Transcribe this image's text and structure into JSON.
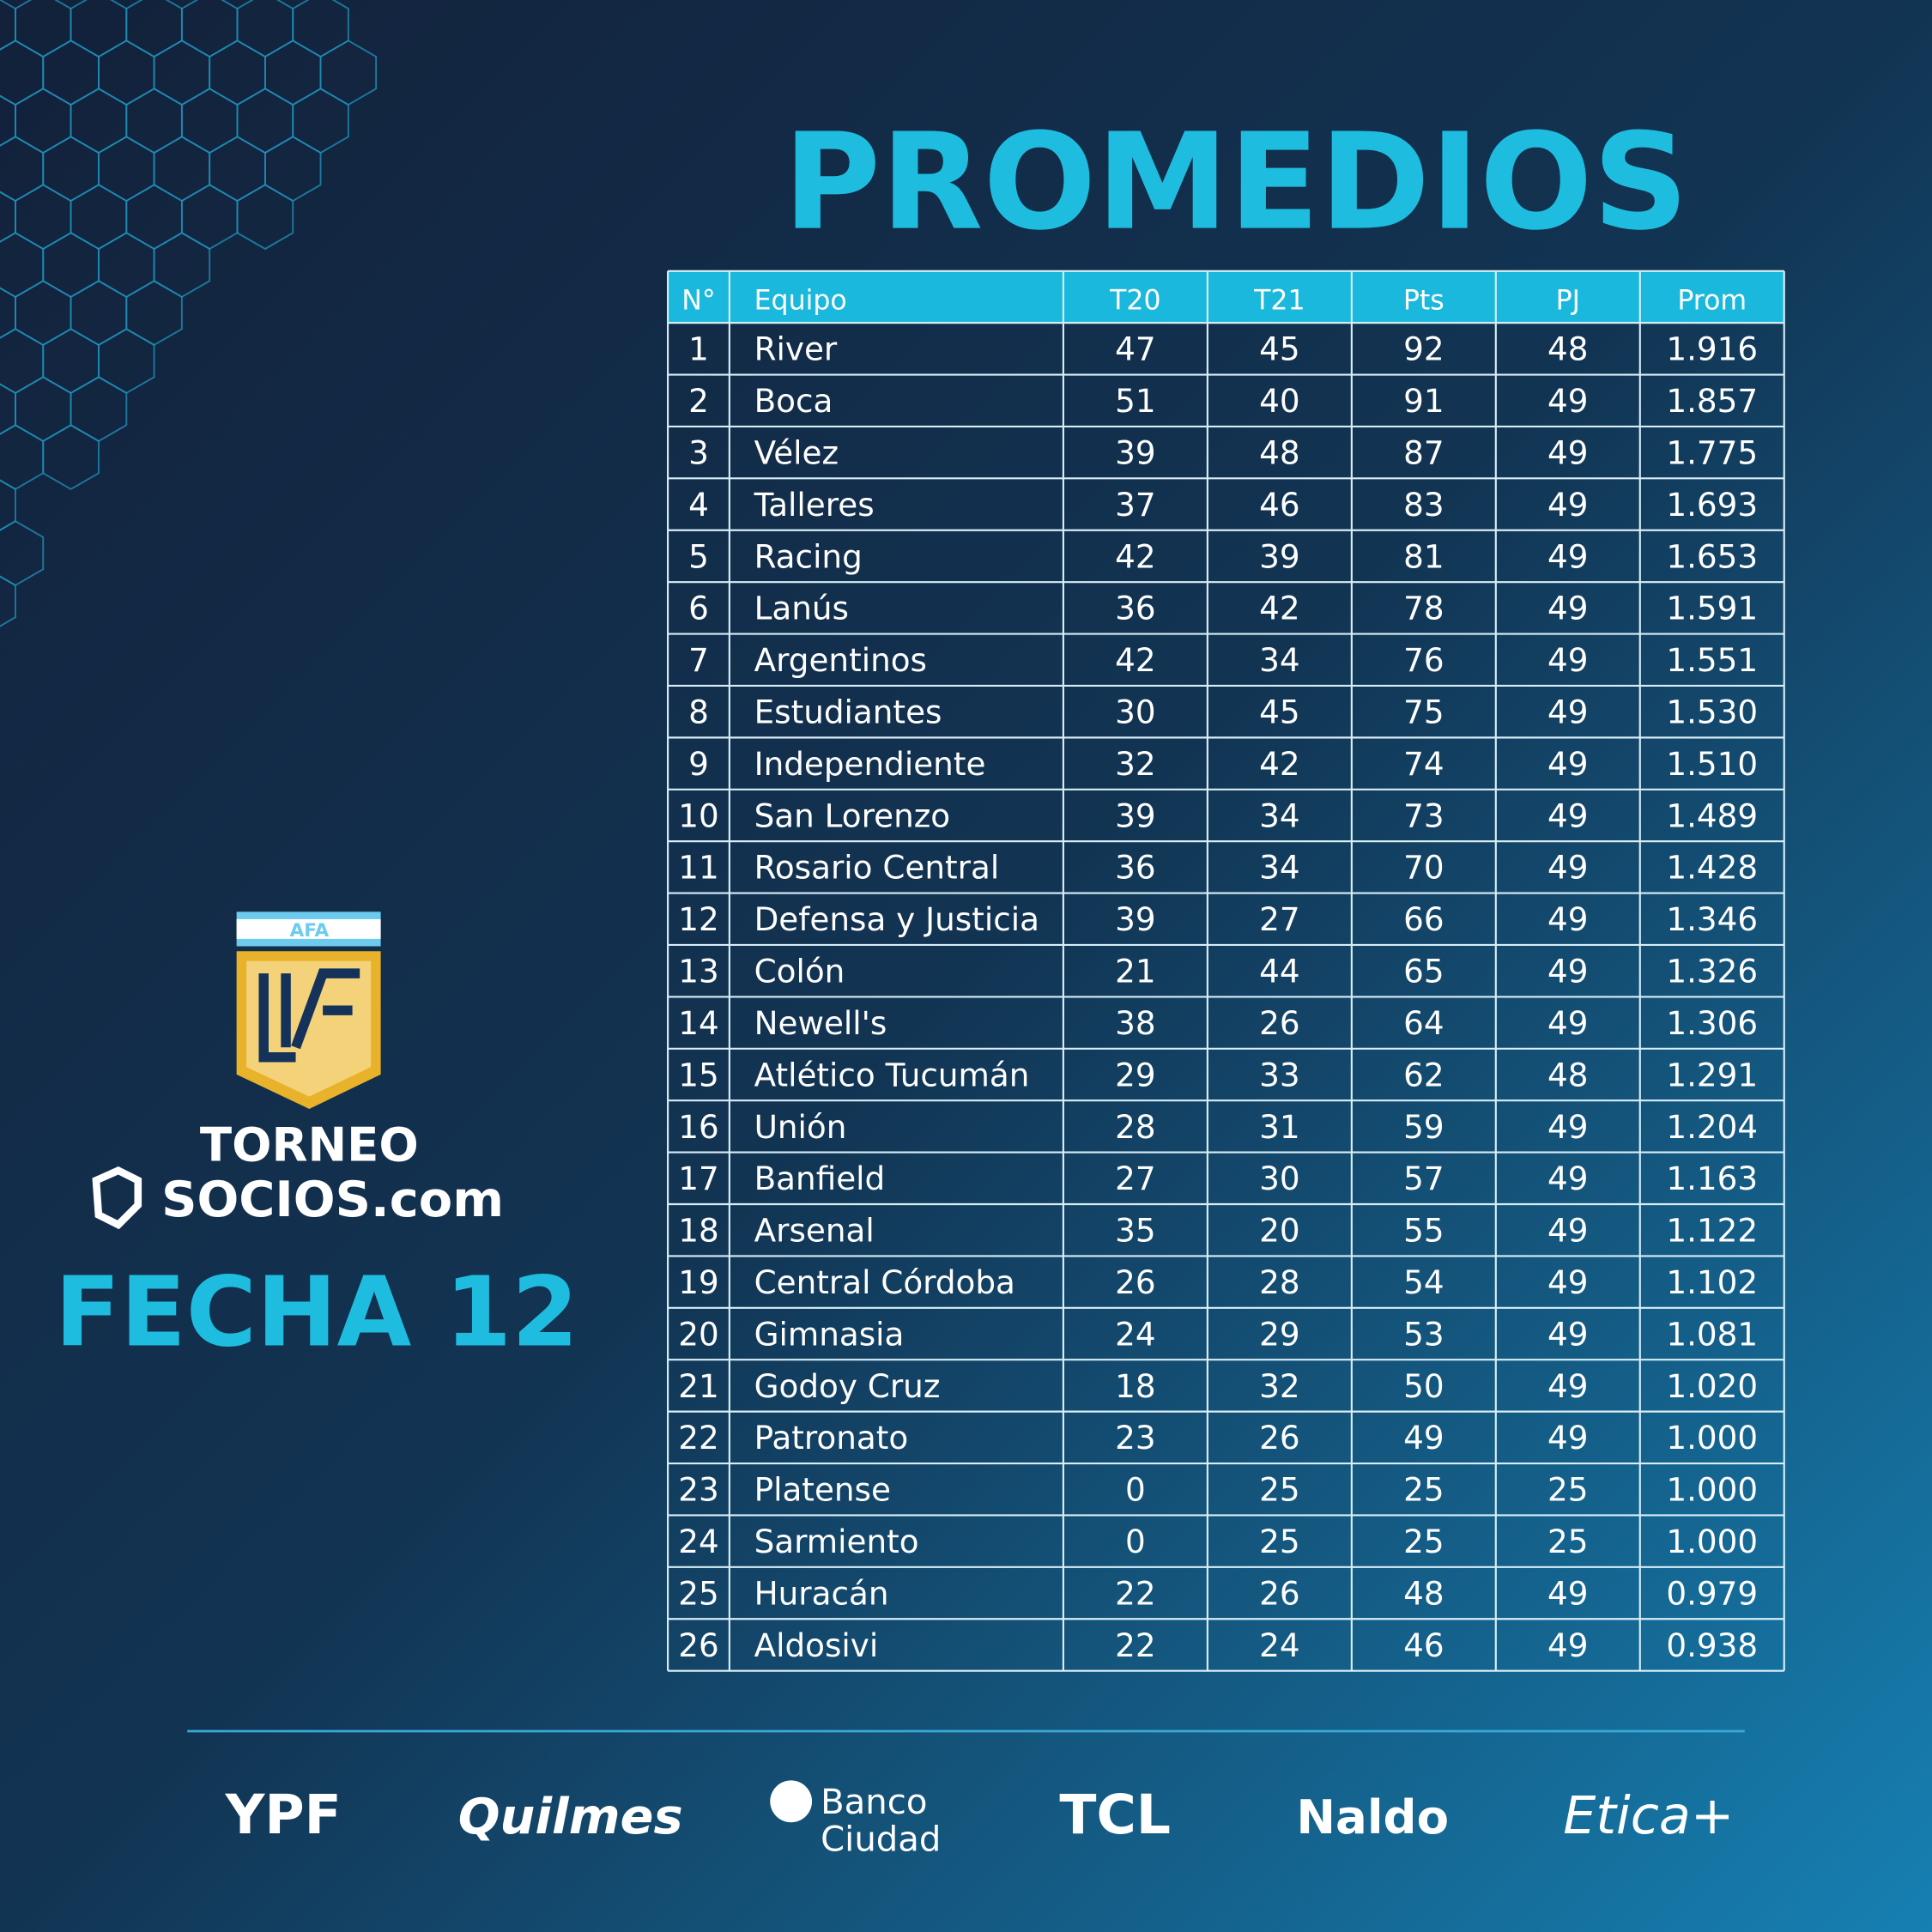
{
  "title": "PROMEDIOS",
  "logo": {
    "badge": "AFA",
    "torneo": "TORNEO",
    "sponsor": "SOCIOS.com",
    "fecha": "FECHA 12"
  },
  "table": {
    "header": [
      "N°",
      "Equipo",
      "T20",
      "T21",
      "Pts",
      "PJ",
      "Prom"
    ],
    "rows": [
      [
        "1",
        "River",
        "47",
        "45",
        "92",
        "48",
        "1.916"
      ],
      [
        "2",
        "Boca",
        "51",
        "40",
        "91",
        "49",
        "1.857"
      ],
      [
        "3",
        "Vélez",
        "39",
        "48",
        "87",
        "49",
        "1.775"
      ],
      [
        "4",
        "Talleres",
        "37",
        "46",
        "83",
        "49",
        "1.693"
      ],
      [
        "5",
        "Racing",
        "42",
        "39",
        "81",
        "49",
        "1.653"
      ],
      [
        "6",
        "Lanús",
        "36",
        "42",
        "78",
        "49",
        "1.591"
      ],
      [
        "7",
        "Argentinos",
        "42",
        "34",
        "76",
        "49",
        "1.551"
      ],
      [
        "8",
        "Estudiantes",
        "30",
        "45",
        "75",
        "49",
        "1.530"
      ],
      [
        "9",
        "Independiente",
        "32",
        "42",
        "74",
        "49",
        "1.510"
      ],
      [
        "10",
        "San Lorenzo",
        "39",
        "34",
        "73",
        "49",
        "1.489"
      ],
      [
        "11",
        "Rosario Central",
        "36",
        "34",
        "70",
        "49",
        "1.428"
      ],
      [
        "12",
        "Defensa y Justicia",
        "39",
        "27",
        "66",
        "49",
        "1.346"
      ],
      [
        "13",
        "Colón",
        "21",
        "44",
        "65",
        "49",
        "1.326"
      ],
      [
        "14",
        "Newell's",
        "38",
        "26",
        "64",
        "49",
        "1.306"
      ],
      [
        "15",
        "Atlético Tucumán",
        "29",
        "33",
        "62",
        "48",
        "1.291"
      ],
      [
        "16",
        "Unión",
        "28",
        "31",
        "59",
        "49",
        "1.204"
      ],
      [
        "17",
        "Banfield",
        "27",
        "30",
        "57",
        "49",
        "1.163"
      ],
      [
        "18",
        "Arsenal",
        "35",
        "20",
        "55",
        "49",
        "1.122"
      ],
      [
        "19",
        "Central Córdoba",
        "26",
        "28",
        "54",
        "49",
        "1.102"
      ],
      [
        "20",
        "Gimnasia",
        "24",
        "29",
        "53",
        "49",
        "1.081"
      ],
      [
        "21",
        "Godoy Cruz",
        "18",
        "32",
        "50",
        "49",
        "1.020"
      ],
      [
        "22",
        "Patronato",
        "23",
        "26",
        "49",
        "49",
        "1.000"
      ],
      [
        "23",
        "Platense",
        "0",
        "25",
        "25",
        "25",
        "1.000"
      ],
      [
        "24",
        "Sarmiento",
        "0",
        "25",
        "25",
        "25",
        "1.000"
      ],
      [
        "25",
        "Huracán",
        "22",
        "26",
        "48",
        "49",
        "0.979"
      ],
      [
        "26",
        "Aldosivi",
        "22",
        "24",
        "46",
        "49",
        "0.938"
      ]
    ]
  },
  "sponsors": [
    "YPF",
    "Quilmes",
    [
      "Banco",
      "Ciudad"
    ],
    "TCL",
    "Naldo",
    "Etica+"
  ]
}
